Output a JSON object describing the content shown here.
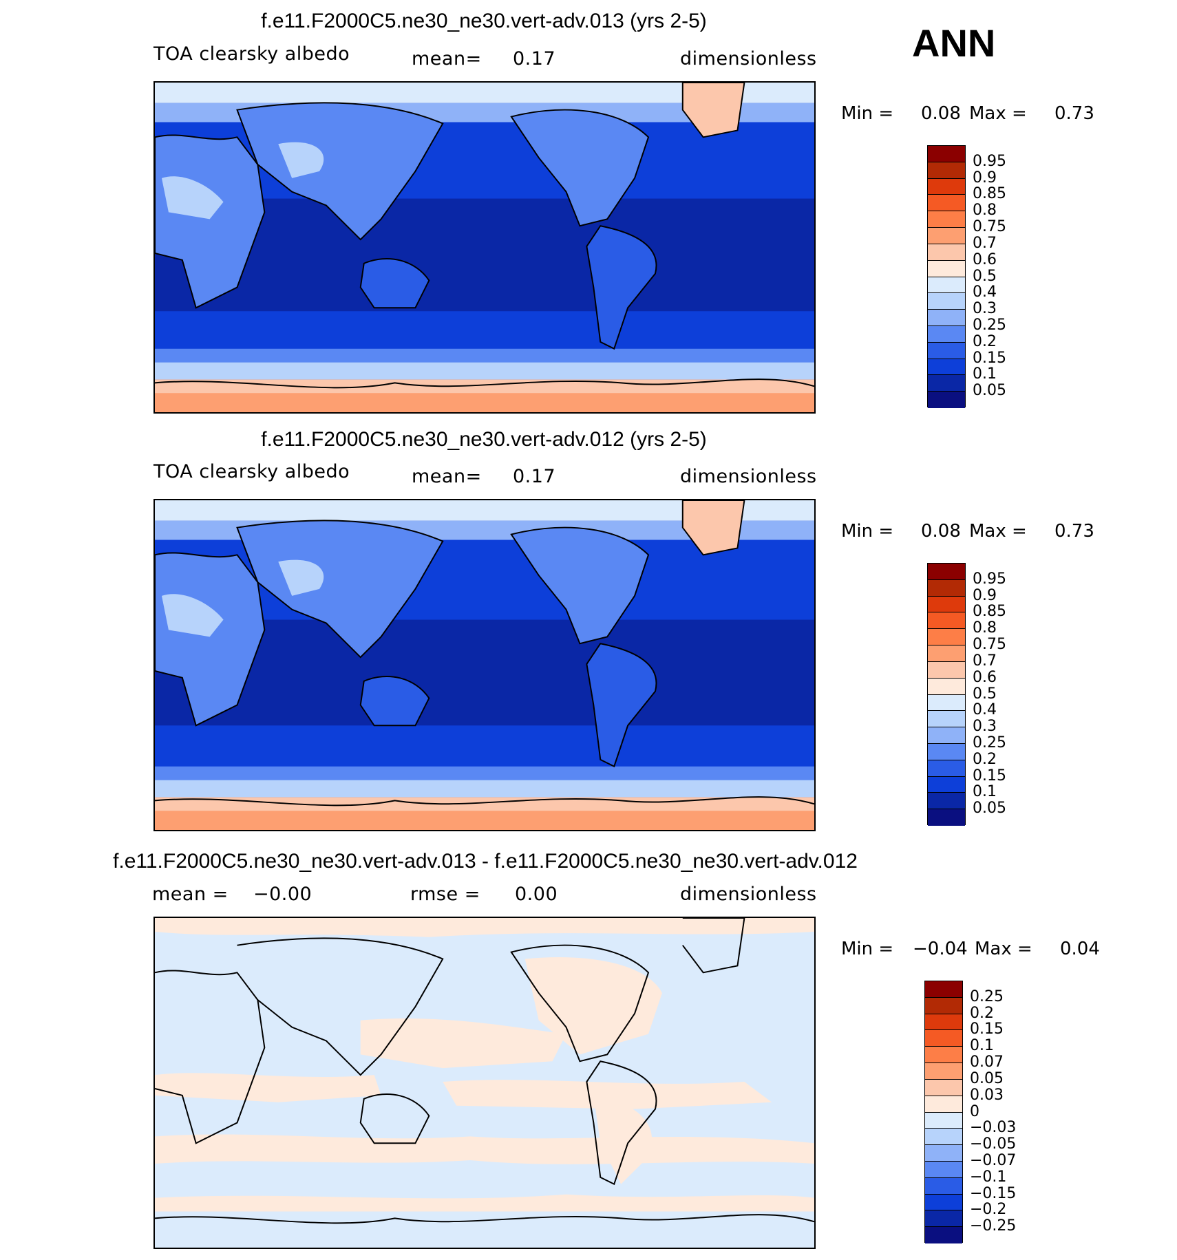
{
  "season": "ANN",
  "palette_main": [
    "#8b0000",
    "#b22a05",
    "#de3a0c",
    "#f55a24",
    "#fd7e47",
    "#fd9f71",
    "#fcc7ac",
    "#feeadc",
    "#dbebfc",
    "#b7d3fb",
    "#8fb2f8",
    "#5a88f3",
    "#2a5ce6",
    "#0d3fd9",
    "#0a27a6",
    "#0a0f80"
  ],
  "palette_diff": [
    "#8b0000",
    "#b22a05",
    "#de3a0c",
    "#f55a24",
    "#fd7e47",
    "#fd9f71",
    "#fcc7ac",
    "#feeadc",
    "#dbebfc",
    "#b7d3fb",
    "#8fb2f8",
    "#5a88f3",
    "#2a5ce6",
    "#0d3fd9",
    "#0a27a6",
    "#0a0f80"
  ],
  "panels": [
    {
      "title": "f.e11.F2000C5.ne30_ne30.vert-adv.013 (yrs 2-5)",
      "left_label": "TOA clearsky albedo",
      "center_label": "mean=",
      "center_value": "0.17",
      "right_label": "dimensionless",
      "min_label": "Min =",
      "min_value": "0.08",
      "max_label": "Max =",
      "max_value": "0.73",
      "colorbar_labels": [
        "0.95",
        "0.9",
        "0.85",
        "0.8",
        "0.75",
        "0.7",
        "0.6",
        "0.5",
        "0.4",
        "0.3",
        "0.25",
        "0.2",
        "0.15",
        "0.1",
        "0.05"
      ]
    },
    {
      "title": "f.e11.F2000C5.ne30_ne30.vert-adv.012 (yrs 2-5)",
      "left_label": "TOA clearsky albedo",
      "center_label": "mean=",
      "center_value": "0.17",
      "right_label": "dimensionless",
      "min_label": "Min =",
      "min_value": "0.08",
      "max_label": "Max =",
      "max_value": "0.73",
      "colorbar_labels": [
        "0.95",
        "0.9",
        "0.85",
        "0.8",
        "0.75",
        "0.7",
        "0.6",
        "0.5",
        "0.4",
        "0.3",
        "0.25",
        "0.2",
        "0.15",
        "0.1",
        "0.05"
      ]
    },
    {
      "title": "f.e11.F2000C5.ne30_ne30.vert-adv.013 - f.e11.F2000C5.ne30_ne30.vert-adv.012",
      "left_label": "mean =",
      "left_value": "−0.00",
      "center_label": "rmse =",
      "center_value": "0.00",
      "right_label": "dimensionless",
      "min_label": "Min =",
      "min_value": "−0.04",
      "max_label": "Max =",
      "max_value": "0.04",
      "colorbar_labels": [
        "0.25",
        "0.2",
        "0.15",
        "0.1",
        "0.07",
        "0.05",
        "0.03",
        "0",
        "−0.03",
        "−0.05",
        "−0.07",
        "−0.1",
        "−0.15",
        "−0.2",
        "−0.25"
      ]
    }
  ]
}
